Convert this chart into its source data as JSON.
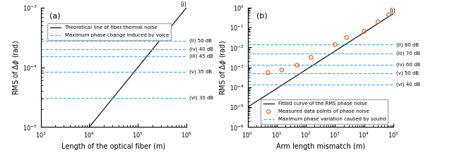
{
  "panel_a": {
    "title": "(a)",
    "xlabel": "Length of the optical fiber (m)",
    "ylabel": "RMS of $\\Delta\\phi$ (rad)",
    "xlim": [
      1000.0,
      1000000.0
    ],
    "ylim": [
      1e-05,
      0.001
    ],
    "line_color": "#2a2a2a",
    "dashed_color": "#5aaadd",
    "line_label": "Theoretical line of fiber thermal noise",
    "dashed_label": "Maximum phase change induced by voice",
    "dashed_lines_values": [
      0.00028,
      0.000155,
      0.0002,
      8.5e-05,
      3.1e-05
    ],
    "dashed_lines_labels": [
      "(ii) 50 dB",
      "(iii) 45 dB",
      "(iv) 40 dB",
      "(v) 35 dB",
      "(vi) 30 dB"
    ],
    "line_scale": 1e-09,
    "line_power": 1.0
  },
  "panel_b": {
    "title": "(b)",
    "xlabel": "Arm length mismatch (m)",
    "ylabel": "RMS of $\\Delta\\phi$ (rad)",
    "xlim": [
      1.0,
      100000.0
    ],
    "ylim": [
      1e-06,
      1.0
    ],
    "line_color": "#2a2a2a",
    "dashed_color": "#5aaadd",
    "marker_color": "#e06020",
    "line_label": "Fitted curve of the RMS phase noise",
    "marker_label": "Measured data points of phase noise",
    "dashed_label": "Maximum phase variation caused by sound",
    "dashed_lines_values": [
      0.014,
      0.005,
      0.0014,
      0.0005,
      0.00014
    ],
    "dashed_lines_labels": [
      "(ii) 80 dB",
      "(iii) 70 dB",
      "(iv) 60 dB",
      "(v) 50 dB",
      "(vi) 40 dB"
    ],
    "measured_x": [
      5,
      15,
      50,
      150,
      1000,
      2500,
      10000,
      30000,
      70000
    ],
    "measured_y": [
      0.00055,
      0.00075,
      0.0013,
      0.0032,
      0.014,
      0.032,
      0.065,
      0.2,
      0.45
    ],
    "line_scale": 1e-05,
    "line_power": 0.94
  }
}
